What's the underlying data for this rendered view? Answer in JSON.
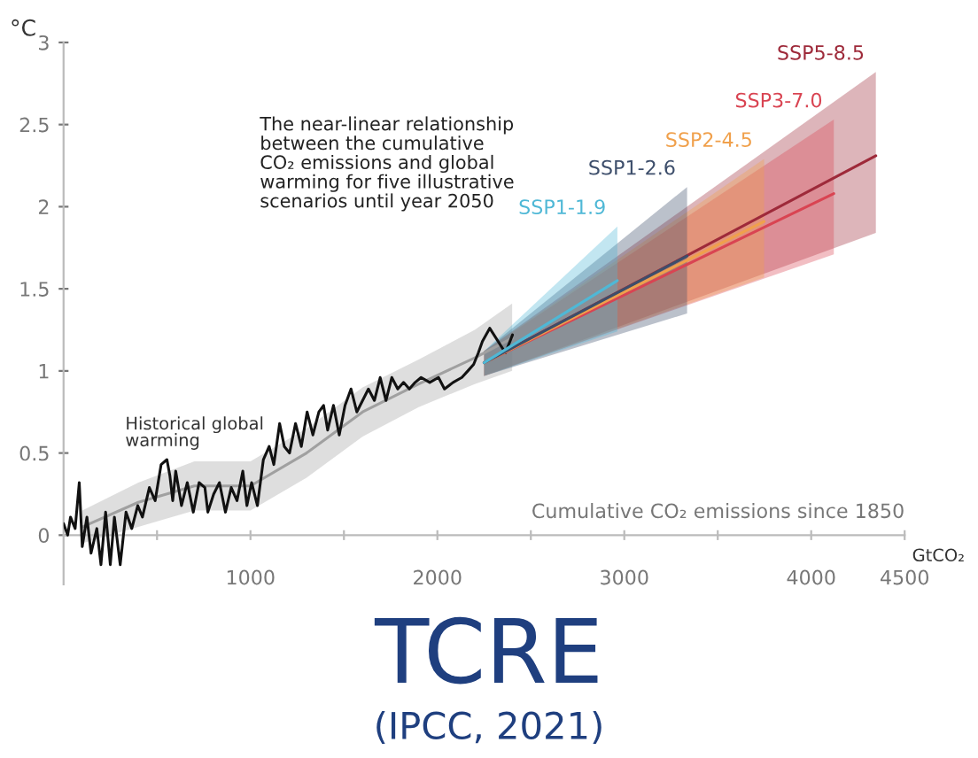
{
  "chart_data": {
    "type": "line",
    "title": "TCRE",
    "subtitle": "(IPCC, 2021)",
    "xlabel": "Cumulative CO₂ emissions since 1850",
    "ylabel": "°C",
    "xlim": [
      0,
      4500
    ],
    "ylim": [
      -0.3,
      3
    ],
    "xticks": [
      {
        "value": 500,
        "label": null
      },
      1000,
      {
        "value": 1500,
        "label": null
      },
      2000,
      {
        "value": 2500,
        "label": null
      },
      3000,
      {
        "value": 3500,
        "label": null
      },
      4000,
      4500
    ],
    "yticks": [
      0,
      0.5,
      1,
      1.5,
      2,
      2.5,
      3
    ],
    "grid": false,
    "legend": false,
    "annotations": [
      "The near-linear relationship\nbetween the cumulative\nCO₂ emissions and global\nwarming for five illustrative\nscenarios until year 2050",
      "GtCO₂"
    ],
    "series": [
      {
        "color": "#a0a0a0",
        "x": [
          100,
          400,
          700,
          1000,
          1300,
          1600,
          1900,
          2200,
          2400
        ],
        "values": [
          0.05,
          0.2,
          0.3,
          0.3,
          0.5,
          0.75,
          0.92,
          1.08,
          1.2
        ],
        "lower": [
          -0.05,
          0.05,
          0.15,
          0.15,
          0.35,
          0.6,
          0.78,
          0.92,
          1.0
        ],
        "upper": [
          0.15,
          0.32,
          0.45,
          0.45,
          0.65,
          0.9,
          1.07,
          1.25,
          1.41
        ]
      },
      {
        "name": "Historical global\nwarming",
        "color": "#111111",
        "x": [
          0,
          22,
          37,
          62,
          84,
          100,
          125,
          147,
          178,
          200,
          225,
          250,
          272,
          303,
          334,
          365,
          397,
          422,
          459,
          490,
          522,
          553,
          569,
          584,
          600,
          631,
          662,
          694,
          725,
          756,
          772,
          803,
          834,
          866,
          897,
          928,
          959,
          981,
          1006,
          1037,
          1069,
          1100,
          1125,
          1156,
          1181,
          1209,
          1241,
          1272,
          1303,
          1334,
          1366,
          1391,
          1413,
          1444,
          1475,
          1506,
          1538,
          1569,
          1600,
          1631,
          1663,
          1694,
          1725,
          1756,
          1788,
          1819,
          1850,
          1881,
          1913,
          1959,
          2006,
          2038,
          2084,
          2131,
          2163,
          2194,
          2219,
          2241,
          2280,
          2364,
          2402
        ],
        "values": [
          0.07,
          0,
          0.11,
          0.04,
          0.32,
          -0.07,
          0.11,
          -0.11,
          0.04,
          -0.18,
          0.14,
          -0.18,
          0.11,
          -0.18,
          0.14,
          0.04,
          0.18,
          0.11,
          0.29,
          0.21,
          0.43,
          0.46,
          0.36,
          0.21,
          0.39,
          0.18,
          0.32,
          0.14,
          0.32,
          0.29,
          0.14,
          0.25,
          0.32,
          0.14,
          0.29,
          0.21,
          0.39,
          0.18,
          0.32,
          0.18,
          0.46,
          0.54,
          0.43,
          0.68,
          0.54,
          0.5,
          0.68,
          0.54,
          0.75,
          0.61,
          0.75,
          0.79,
          0.64,
          0.79,
          0.61,
          0.79,
          0.89,
          0.75,
          0.82,
          0.89,
          0.82,
          0.96,
          0.82,
          0.96,
          0.89,
          0.93,
          0.89,
          0.93,
          0.96,
          0.93,
          0.96,
          0.89,
          0.93,
          0.96,
          1.0,
          1.04,
          1.11,
          1.18,
          1.26,
          1.11,
          1.22
        ]
      },
      {
        "name": "SSP5-8.5",
        "color": "#9e2a3a",
        "x": [
          2250,
          4346
        ],
        "values": [
          1.05,
          2.31
        ],
        "lower": [
          0.97,
          1.84
        ],
        "upper": [
          1.12,
          2.82
        ]
      },
      {
        "name": "SSP3-7.0",
        "color": "#d94452",
        "x": [
          2250,
          4121
        ],
        "values": [
          1.05,
          2.08
        ],
        "lower": [
          0.97,
          1.71
        ],
        "upper": [
          1.12,
          2.53
        ]
      },
      {
        "name": "SSP2-4.5",
        "color": "#f0a04b",
        "x": [
          2250,
          3748
        ],
        "values": [
          1.05,
          1.91
        ],
        "lower": [
          0.97,
          1.57
        ],
        "upper": [
          1.12,
          2.29
        ]
      },
      {
        "name": "SSP1-2.6",
        "color": "#3d4e6b",
        "x": [
          2250,
          3336
        ],
        "values": [
          1.05,
          1.7
        ],
        "lower": [
          0.97,
          1.35
        ],
        "upper": [
          1.12,
          2.12
        ]
      },
      {
        "name": "SSP1-1.9",
        "color": "#4fb8d6",
        "x": [
          2250,
          2963
        ],
        "values": [
          1.05,
          1.55
        ],
        "lower": [
          0.97,
          1.24
        ],
        "upper": [
          1.12,
          1.88
        ]
      }
    ]
  }
}
